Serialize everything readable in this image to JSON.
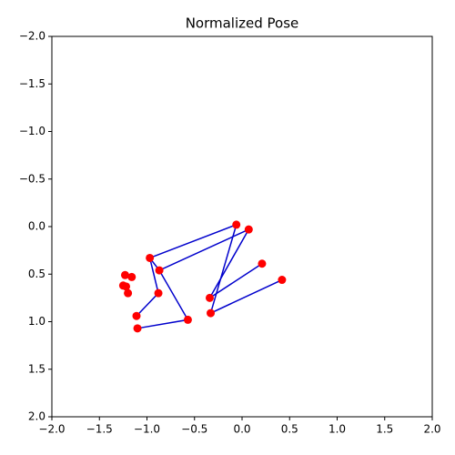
{
  "chart_data": {
    "type": "scatter",
    "title": "Normalized Pose",
    "xlim": [
      -2,
      2
    ],
    "ylim": [
      2,
      -2
    ],
    "xticks": [
      {
        "value": -2,
        "label": "−2.0"
      },
      {
        "value": -1.5,
        "label": "−1.5"
      },
      {
        "value": -1,
        "label": "−1.0"
      },
      {
        "value": -0.5,
        "label": "−0.5"
      },
      {
        "value": 0,
        "label": "0.0"
      },
      {
        "value": 0.5,
        "label": "0.5"
      },
      {
        "value": 1,
        "label": "1.0"
      },
      {
        "value": 1.5,
        "label": "1.5"
      },
      {
        "value": 2,
        "label": "2.0"
      }
    ],
    "yticks": [
      {
        "value": -2,
        "label": "−2.0"
      },
      {
        "value": -1.5,
        "label": "−1.5"
      },
      {
        "value": -1,
        "label": "−1.0"
      },
      {
        "value": -0.5,
        "label": "−0.5"
      },
      {
        "value": 0,
        "label": "0.0"
      },
      {
        "value": 0.5,
        "label": "0.5"
      },
      {
        "value": 1,
        "label": "1.0"
      },
      {
        "value": 1.5,
        "label": "1.5"
      },
      {
        "value": 2,
        "label": "2.0"
      }
    ],
    "points": {
      "color": "#ff0000",
      "x": [
        -0.06,
        0.07,
        -0.97,
        -0.87,
        -0.88,
        -1.11,
        -0.57,
        -1.1,
        -0.33,
        0.42,
        -0.34,
        0.21,
        -1.23,
        -1.16,
        -1.25,
        -1.22,
        -1.2
      ],
      "y": [
        -0.02,
        0.03,
        0.33,
        0.46,
        0.7,
        0.94,
        0.98,
        1.07,
        0.91,
        0.56,
        0.75,
        0.39,
        0.51,
        0.53,
        0.62,
        0.63,
        0.7
      ]
    },
    "lines": {
      "color": "#0000cc",
      "series": [
        {
          "x": [
            -0.06,
            -0.97,
            -0.88,
            -1.11
          ],
          "y": [
            -0.02,
            0.33,
            0.7,
            0.94
          ]
        },
        {
          "x": [
            0.07,
            -0.87,
            -0.57,
            -1.1
          ],
          "y": [
            0.03,
            0.46,
            0.98,
            1.07
          ]
        },
        {
          "x": [
            -0.06,
            -0.33,
            0.42
          ],
          "y": [
            -0.02,
            0.91,
            0.56
          ]
        },
        {
          "x": [
            0.07,
            -0.34,
            0.21
          ],
          "y": [
            0.03,
            0.75,
            0.39
          ]
        },
        {
          "x": [
            -0.97,
            -0.87
          ],
          "y": [
            0.33,
            0.46
          ]
        }
      ]
    }
  }
}
